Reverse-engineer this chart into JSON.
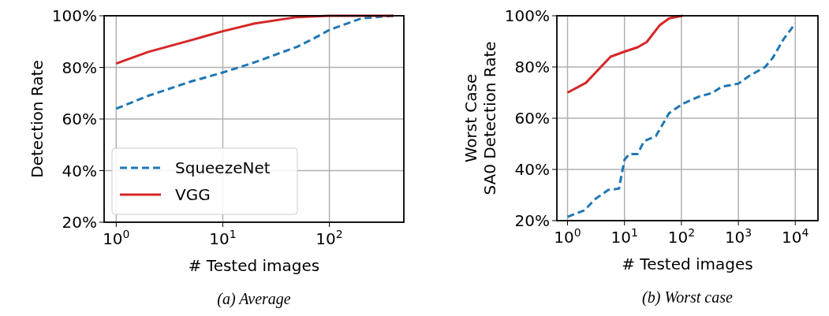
{
  "chart_data": [
    {
      "type": "line",
      "xlabel": "# Tested images",
      "ylabel": "Detection Rate",
      "log": "x",
      "xlim": [
        0.77,
        500
      ],
      "xticks": [
        {
          "value": 1,
          "label": "10$^{0}$"
        },
        {
          "value": 10,
          "label": "10$^{1}$"
        },
        {
          "value": 100,
          "label": "10$^{2}$"
        }
      ],
      "ylim": [
        20,
        100
      ],
      "yticks": [
        {
          "value": 20,
          "label": "20%"
        },
        {
          "value": 40,
          "label": "40%"
        },
        {
          "value": 60,
          "label": "60%"
        },
        {
          "value": 80,
          "label": "80%"
        },
        {
          "value": 100,
          "label": "100%"
        }
      ],
      "grid": true,
      "legend": "bottom left",
      "annotations": [
        "(a) Average"
      ],
      "series": [
        {
          "name": "SqueezeNet",
          "color": "#1f77b4",
          "line_style": "dashed",
          "x": [
            1,
            2,
            5,
            10,
            20,
            50,
            70,
            100,
            200,
            400
          ],
          "values": [
            64,
            69,
            74.5,
            78,
            82,
            88,
            91,
            94.5,
            99,
            100
          ]
        },
        {
          "name": "VGG",
          "color": "#d62728",
          "line_style": "solid",
          "x": [
            1,
            2,
            5,
            10,
            20,
            50,
            100,
            400
          ],
          "values": [
            81.5,
            86,
            90.5,
            94,
            97,
            99.5,
            100,
            100
          ]
        }
      ]
    },
    {
      "type": "line",
      "xlabel": "# Tested images",
      "ylabel": "Worst Case\nSA0 Detection Rate",
      "log": "x",
      "xlim": [
        0.65,
        25000
      ],
      "xticks": [
        {
          "value": 1,
          "label": "10$^{0}$"
        },
        {
          "value": 10,
          "label": "10$^{1}$"
        },
        {
          "value": 100,
          "label": "10$^{2}$"
        },
        {
          "value": 1000,
          "label": "10$^{3}$"
        },
        {
          "value": 10000,
          "label": "10$^{4}$"
        }
      ],
      "ylim": [
        20,
        100
      ],
      "yticks": [
        {
          "value": 20,
          "label": "20%"
        },
        {
          "value": 40,
          "label": "40%"
        },
        {
          "value": 60,
          "label": "60%"
        },
        {
          "value": 80,
          "label": "80%"
        },
        {
          "value": 100,
          "label": "100%"
        }
      ],
      "grid": true,
      "annotations": [
        "(b) Worst case"
      ],
      "series": [
        {
          "color": "#1f77b4",
          "line_style": "dashed",
          "x": [
            1,
            2,
            3,
            5.2,
            8,
            10,
            12.2,
            17,
            22,
            35.5,
            61,
            105,
            196,
            340,
            515,
            1000,
            1520,
            2950,
            4000,
            6200,
            10000
          ],
          "values": [
            21.5,
            24.1,
            28.3,
            32,
            32.5,
            43.8,
            46,
            46,
            51,
            53,
            62,
            65.6,
            68.3,
            69.8,
            72.3,
            73.5,
            76.4,
            80,
            83.5,
            90.8,
            97
          ]
        },
        {
          "color": "#d62728",
          "line_style": "solid",
          "x": [
            1,
            2.1,
            5.7,
            10,
            17,
            24.5,
            42,
            61,
            105
          ],
          "values": [
            70,
            73.8,
            84,
            86,
            87.7,
            89.7,
            96.4,
            99,
            100
          ]
        }
      ]
    }
  ]
}
